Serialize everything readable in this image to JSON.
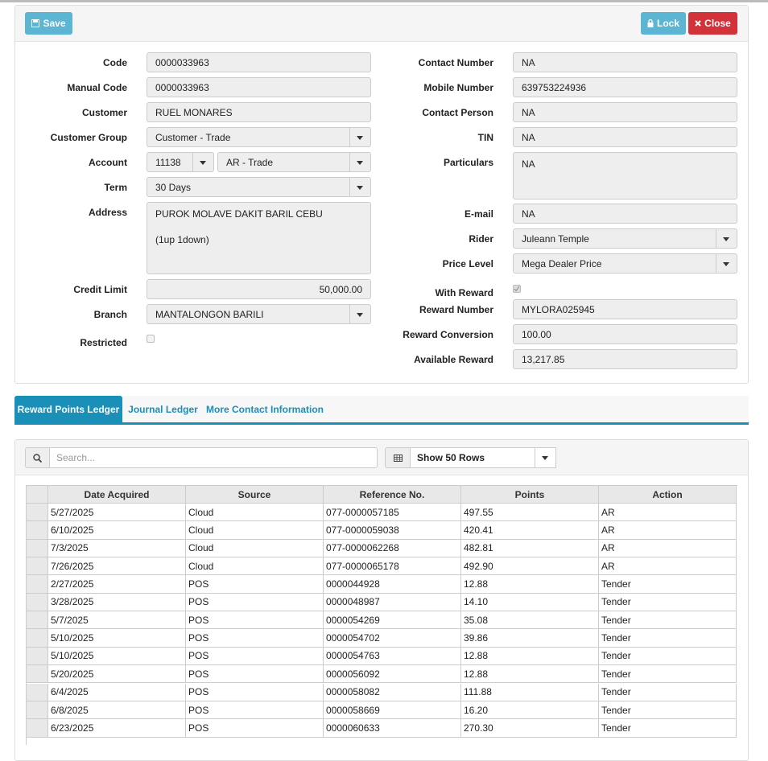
{
  "toolbar": {
    "save": "Save",
    "lock": "Lock",
    "close": "Close"
  },
  "left_fields": [
    {
      "label": "Code",
      "value": "0000033963"
    },
    {
      "label": "Manual Code",
      "value": "0000033963"
    },
    {
      "label": "Customer",
      "value": "RUEL MONARES"
    },
    {
      "label": "Customer Group",
      "value": "Customer - Trade",
      "dropdown": true
    },
    {
      "label": "Account",
      "values": [
        "11138",
        "AR - Trade"
      ],
      "dropdown": true
    },
    {
      "label": "Term",
      "value": "30 Days",
      "dropdown": true
    },
    {
      "label": "Address",
      "value": "PUROK MOLAVE DAKIT BARIL CEBU\n\n(1up 1down)"
    },
    {
      "label": "Credit Limit",
      "value": "50,000.00",
      "align": "right"
    },
    {
      "label": "Branch",
      "value": "MANTALONGON BARILI",
      "dropdown": true
    },
    {
      "label": "Restricted",
      "checked": false
    }
  ],
  "right_fields": [
    {
      "label": "Contact Number",
      "value": "NA"
    },
    {
      "label": "Mobile Number",
      "value": "639753224936"
    },
    {
      "label": "Contact Person",
      "value": "NA"
    },
    {
      "label": "TIN",
      "value": "NA"
    },
    {
      "label": "Particulars",
      "value": "NA"
    },
    {
      "label": "E-mail",
      "value": "NA"
    },
    {
      "label": "Rider",
      "value": "Juleann Temple",
      "dropdown": true
    },
    {
      "label": "Price Level",
      "value": "Mega Dealer Price",
      "dropdown": true
    },
    {
      "label": "With Reward",
      "checked": true
    },
    {
      "label": "Reward Number",
      "value": "MYLORA025945"
    },
    {
      "label": "Reward Conversion",
      "value": "100.00"
    },
    {
      "label": "Available Reward",
      "value": "13,217.85"
    }
  ],
  "tabs": {
    "items": [
      "Reward Points Ledger",
      "Journal Ledger",
      "More Contact Information"
    ],
    "active": 0
  },
  "ledger": {
    "search_placeholder": "Search...",
    "rows_select": "Show 50 Rows",
    "table": {
      "columns": [
        "Date Acquired",
        "Source",
        "Reference No.",
        "Points",
        "Action"
      ],
      "rows": [
        [
          "5/27/2025",
          "Cloud",
          "077-0000057185",
          "497.55",
          "AR"
        ],
        [
          "6/10/2025",
          "Cloud",
          "077-0000059038",
          "420.41",
          "AR"
        ],
        [
          "7/3/2025",
          "Cloud",
          "077-0000062268",
          "482.81",
          "AR"
        ],
        [
          "7/26/2025",
          "Cloud",
          "077-0000065178",
          "492.90",
          "AR"
        ],
        [
          "2/27/2025",
          "POS",
          "0000044928",
          "12.88",
          "Tender"
        ],
        [
          "3/28/2025",
          "POS",
          "0000048987",
          "14.10",
          "Tender"
        ],
        [
          "5/7/2025",
          "POS",
          "0000054269",
          "35.08",
          "Tender"
        ],
        [
          "5/10/2025",
          "POS",
          "0000054702",
          "39.86",
          "Tender"
        ],
        [
          "5/10/2025",
          "POS",
          "0000054763",
          "12.88",
          "Tender"
        ],
        [
          "5/20/2025",
          "POS",
          "0000056092",
          "12.88",
          "Tender"
        ],
        [
          "6/4/2025",
          "POS",
          "0000058082",
          "111.88",
          "Tender"
        ],
        [
          "6/8/2025",
          "POS",
          "0000058669",
          "16.20",
          "Tender"
        ],
        [
          "6/23/2025",
          "POS",
          "0000060633",
          "270.30",
          "Tender"
        ]
      ]
    }
  }
}
